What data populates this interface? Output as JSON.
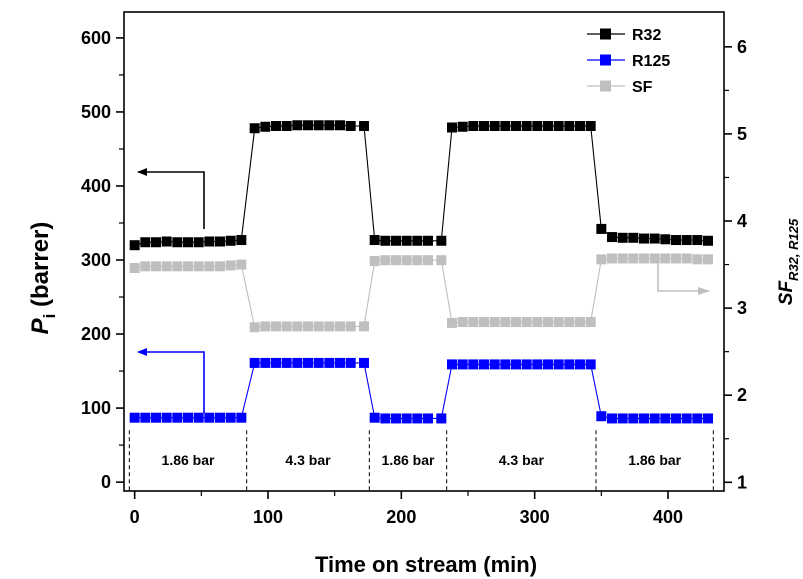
{
  "chart_data": {
    "type": "line",
    "xlabel": "Time on stream (min)",
    "ylabel_main": "P",
    "ylabel_sub": "i",
    "ylabel_rest": " (barrer)",
    "y2label_main": "SF",
    "y2label_sub": "R32, R125",
    "xlim": [
      -8,
      442
    ],
    "ylim": [
      -12,
      635
    ],
    "y2lim": [
      0.9,
      6.4
    ],
    "xticks": [
      0,
      100,
      200,
      300,
      400
    ],
    "yticks": [
      0,
      100,
      200,
      300,
      400,
      500,
      600
    ],
    "y2ticks": [
      1,
      2,
      3,
      4,
      5,
      6
    ],
    "legend_position": "top-right",
    "series": [
      {
        "name": "R32",
        "axis": "left",
        "color": "#000000",
        "x": [
          0,
          8,
          16,
          24,
          32,
          40,
          48,
          56,
          64,
          72,
          80,
          90,
          98,
          106,
          114,
          122,
          130,
          138,
          146,
          154,
          162,
          172,
          180,
          188,
          196,
          204,
          212,
          220,
          230,
          238,
          246,
          254,
          262,
          270,
          278,
          286,
          294,
          302,
          310,
          318,
          326,
          334,
          342,
          350,
          358,
          366,
          374,
          382,
          390,
          398,
          406,
          414,
          422,
          430
        ],
        "y": [
          320,
          324,
          324,
          325,
          324,
          324,
          324,
          325,
          325,
          326,
          327,
          478,
          480,
          481,
          481,
          482,
          482,
          482,
          482,
          482,
          481,
          481,
          327,
          326,
          326,
          326,
          326,
          326,
          326,
          479,
          480,
          481,
          481,
          481,
          481,
          481,
          481,
          481,
          481,
          481,
          481,
          481,
          481,
          342,
          331,
          330,
          330,
          329,
          329,
          328,
          327,
          327,
          327,
          326
        ]
      },
      {
        "name": "R125",
        "axis": "left",
        "color": "#0000ff",
        "x": [
          0,
          8,
          16,
          24,
          32,
          40,
          48,
          56,
          64,
          72,
          80,
          90,
          98,
          106,
          114,
          122,
          130,
          138,
          146,
          154,
          162,
          172,
          180,
          188,
          196,
          204,
          212,
          220,
          230,
          238,
          246,
          254,
          262,
          270,
          278,
          286,
          294,
          302,
          310,
          318,
          326,
          334,
          342,
          350,
          358,
          366,
          374,
          382,
          390,
          398,
          406,
          414,
          422,
          430
        ],
        "y": [
          87,
          87,
          87,
          87,
          87,
          87,
          87,
          87,
          87,
          87,
          87,
          161,
          161,
          161,
          161,
          161,
          161,
          161,
          161,
          161,
          161,
          161,
          87,
          86,
          86,
          86,
          86,
          86,
          86,
          159,
          159,
          159,
          159,
          159,
          159,
          159,
          159,
          159,
          159,
          159,
          159,
          159,
          159,
          89,
          86,
          86,
          86,
          86,
          86,
          86,
          86,
          86,
          86,
          86
        ]
      },
      {
        "name": "SF",
        "axis": "right",
        "color": "#bfbfbf",
        "x": [
          0,
          8,
          16,
          24,
          32,
          40,
          48,
          56,
          64,
          72,
          80,
          90,
          98,
          106,
          114,
          122,
          130,
          138,
          146,
          154,
          162,
          172,
          180,
          188,
          196,
          204,
          212,
          220,
          230,
          238,
          246,
          254,
          262,
          270,
          278,
          286,
          294,
          302,
          310,
          318,
          326,
          334,
          342,
          350,
          358,
          366,
          374,
          382,
          390,
          398,
          406,
          414,
          422,
          430
        ],
        "y": [
          3.46,
          3.48,
          3.48,
          3.48,
          3.48,
          3.48,
          3.48,
          3.48,
          3.48,
          3.49,
          3.5,
          2.78,
          2.79,
          2.79,
          2.79,
          2.79,
          2.79,
          2.79,
          2.79,
          2.79,
          2.79,
          2.79,
          3.54,
          3.55,
          3.55,
          3.55,
          3.55,
          3.55,
          3.55,
          2.83,
          2.84,
          2.84,
          2.84,
          2.84,
          2.84,
          2.84,
          2.84,
          2.84,
          2.84,
          2.84,
          2.84,
          2.84,
          2.84,
          3.56,
          3.57,
          3.57,
          3.57,
          3.57,
          3.57,
          3.57,
          3.57,
          3.57,
          3.56,
          3.56
        ]
      }
    ],
    "segments": [
      {
        "label": "1.86 bar",
        "start": -4,
        "end": 84
      },
      {
        "label": "4.3 bar",
        "start": 84,
        "end": 176
      },
      {
        "label": "1.86 bar",
        "start": 176,
        "end": 234
      },
      {
        "label": "4.3 bar",
        "start": 234,
        "end": 346
      },
      {
        "label": "1.86 bar",
        "start": 346,
        "end": 434
      }
    ]
  }
}
